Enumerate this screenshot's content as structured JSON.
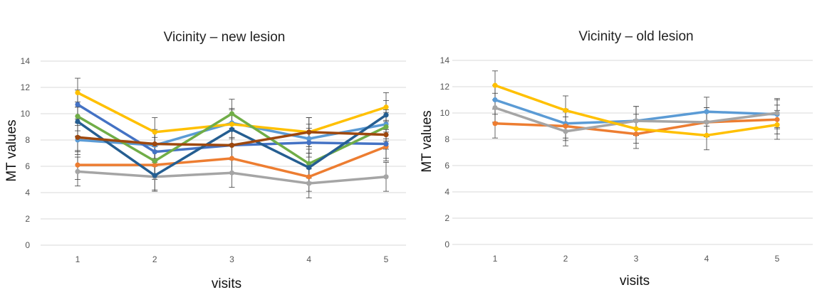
{
  "chart_data": [
    {
      "type": "line",
      "title": "Vicinity – new lesion",
      "xlabel": "visits",
      "ylabel": "MT values",
      "categories": [
        "1",
        "2",
        "3",
        "4",
        "5"
      ],
      "ylim": [
        0,
        14
      ],
      "yticks": [
        "0",
        "2",
        "4",
        "6",
        "8",
        "10",
        "12",
        "14"
      ],
      "grid": true,
      "legend": "none",
      "error_bar_halfwidth": 1.1,
      "series": [
        {
          "color": "#5b9bd5",
          "values": [
            8.0,
            7.6,
            9.3,
            8.1,
            9.2
          ]
        },
        {
          "color": "#ed7d31",
          "values": [
            6.1,
            6.1,
            6.6,
            5.2,
            7.5
          ]
        },
        {
          "color": "#a5a5a5",
          "values": [
            5.6,
            5.2,
            5.5,
            4.7,
            5.2
          ]
        },
        {
          "color": "#ffc000",
          "values": [
            11.6,
            8.6,
            9.2,
            8.6,
            10.5
          ]
        },
        {
          "color": "#4472c4",
          "values": [
            10.7,
            7.1,
            7.6,
            7.8,
            7.7
          ]
        },
        {
          "color": "#70ad47",
          "values": [
            9.8,
            6.4,
            10.0,
            6.2,
            9.0
          ]
        },
        {
          "color": "#255e91",
          "values": [
            9.4,
            5.3,
            8.8,
            5.9,
            9.9
          ]
        },
        {
          "color": "#9e480e",
          "values": [
            8.2,
            7.7,
            7.6,
            8.6,
            8.4
          ]
        }
      ]
    },
    {
      "type": "line",
      "title": "Vicinity – old lesion",
      "xlabel": "visits",
      "ylabel": "MT values",
      "categories": [
        "1",
        "2",
        "3",
        "4",
        "5"
      ],
      "ylim": [
        0,
        14
      ],
      "yticks": [
        "0",
        "2",
        "4",
        "6",
        "8",
        "10",
        "12",
        "14"
      ],
      "grid": true,
      "legend": "none",
      "error_bar_halfwidth": 1.1,
      "series": [
        {
          "color": "#5b9bd5",
          "values": [
            11.0,
            9.2,
            9.4,
            10.1,
            9.9
          ]
        },
        {
          "color": "#ed7d31",
          "values": [
            9.2,
            9.0,
            8.4,
            9.3,
            9.5
          ]
        },
        {
          "color": "#a5a5a5",
          "values": [
            10.4,
            8.6,
            9.4,
            9.3,
            10.0
          ]
        },
        {
          "color": "#ffc000",
          "values": [
            12.1,
            10.2,
            8.8,
            8.3,
            9.1
          ]
        }
      ]
    }
  ]
}
